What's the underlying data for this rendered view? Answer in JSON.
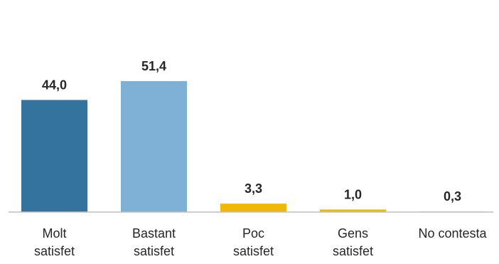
{
  "chart_data": {
    "type": "bar",
    "categories": [
      [
        "Molt",
        "satisfet"
      ],
      [
        "Bastant",
        "satisfet"
      ],
      [
        "Poc",
        "satisfet"
      ],
      [
        "Gens",
        "satisfet"
      ],
      [
        "No contesta"
      ]
    ],
    "values": [
      44.0,
      51.4,
      3.3,
      1.0,
      0.3
    ],
    "value_labels": [
      "44,0",
      "51,4",
      "3,3",
      "1,0",
      "0,3"
    ],
    "bar_colors": [
      "#35739f",
      "#7fb0d5",
      "#f2b800",
      "#f2b800",
      "#d9d9d9"
    ],
    "ylim": [
      0,
      60
    ],
    "grid": false,
    "axis_color": "#bfbfbf"
  }
}
